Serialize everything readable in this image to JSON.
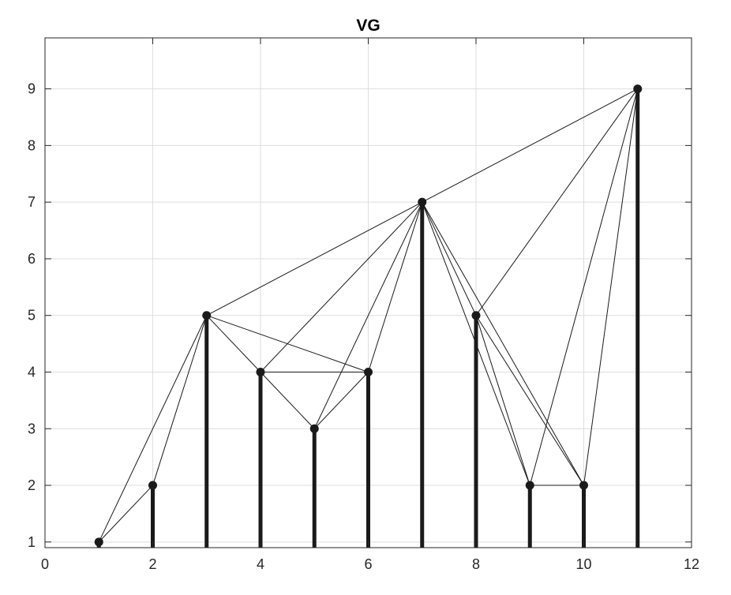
{
  "chart_data": {
    "type": "scatter",
    "title": "VG",
    "xlabel": "",
    "ylabel": "",
    "xlim": [
      0,
      12
    ],
    "ylim": [
      0.9,
      9.9
    ],
    "xticks": [
      0,
      2,
      4,
      6,
      8,
      10,
      12
    ],
    "yticks": [
      1,
      2,
      3,
      4,
      5,
      6,
      7,
      8,
      9
    ],
    "grid": true,
    "points": [
      {
        "x": 1,
        "y": 1
      },
      {
        "x": 2,
        "y": 2
      },
      {
        "x": 3,
        "y": 5
      },
      {
        "x": 4,
        "y": 4
      },
      {
        "x": 5,
        "y": 3
      },
      {
        "x": 6,
        "y": 4
      },
      {
        "x": 7,
        "y": 7
      },
      {
        "x": 8,
        "y": 5
      },
      {
        "x": 9,
        "y": 2
      },
      {
        "x": 10,
        "y": 2
      },
      {
        "x": 11,
        "y": 9
      }
    ],
    "edges": [
      [
        1,
        2
      ],
      [
        1,
        3
      ],
      [
        2,
        3
      ],
      [
        3,
        4
      ],
      [
        3,
        6
      ],
      [
        3,
        7
      ],
      [
        4,
        5
      ],
      [
        4,
        6
      ],
      [
        4,
        7
      ],
      [
        5,
        6
      ],
      [
        5,
        7
      ],
      [
        6,
        7
      ],
      [
        7,
        8
      ],
      [
        7,
        9
      ],
      [
        7,
        10
      ],
      [
        7,
        11
      ],
      [
        8,
        9
      ],
      [
        8,
        10
      ],
      [
        8,
        11
      ],
      [
        9,
        10
      ],
      [
        9,
        11
      ],
      [
        10,
        11
      ]
    ],
    "colors": {
      "stem": "#1a1a1a",
      "marker": "#1a1a1a",
      "edge": "#1a1a1a",
      "grid": "#dedede",
      "axis": "#262626"
    }
  }
}
